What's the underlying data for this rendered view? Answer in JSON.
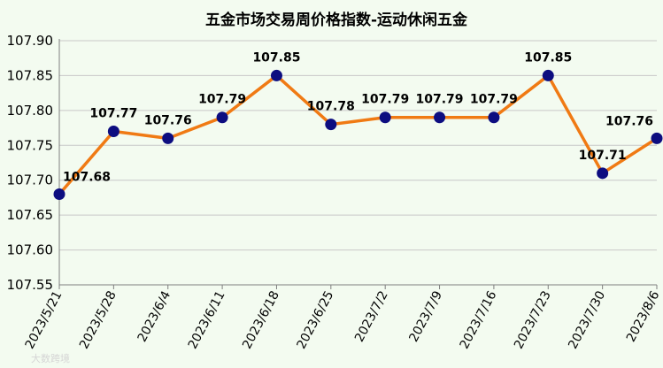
{
  "chart_data": {
    "type": "line",
    "title": "五金市场交易周价格指数-运动休闲五金",
    "categories": [
      "2023/5/21",
      "2023/5/28",
      "2023/6/4",
      "2023/6/11",
      "2023/6/18",
      "2023/6/25",
      "2023/7/2",
      "2023/7/9",
      "2023/7/16",
      "2023/7/23",
      "2023/7/30",
      "2023/8/6"
    ],
    "series": [
      {
        "values": [
          107.68,
          107.77,
          107.76,
          107.79,
          107.85,
          107.78,
          107.79,
          107.79,
          107.79,
          107.85,
          107.71,
          107.76
        ]
      }
    ],
    "data_labels": [
      "107.68",
      "107.77",
      "107.76",
      "107.79",
      "107.85",
      "107.78",
      "107.79",
      "107.79",
      "107.79",
      "107.85",
      "107.71",
      "107.76"
    ],
    "ylim": [
      107.55,
      107.9
    ],
    "yticks": [
      "107.90",
      "107.85",
      "107.80",
      "107.75",
      "107.70",
      "107.65",
      "107.60",
      "107.55"
    ],
    "grid": true,
    "colors": {
      "line": "#f07a14",
      "marker": "#0d0d80",
      "grid": "#c8c8c8",
      "axis": "#7f7f7f"
    }
  },
  "watermark": "大数跨境"
}
